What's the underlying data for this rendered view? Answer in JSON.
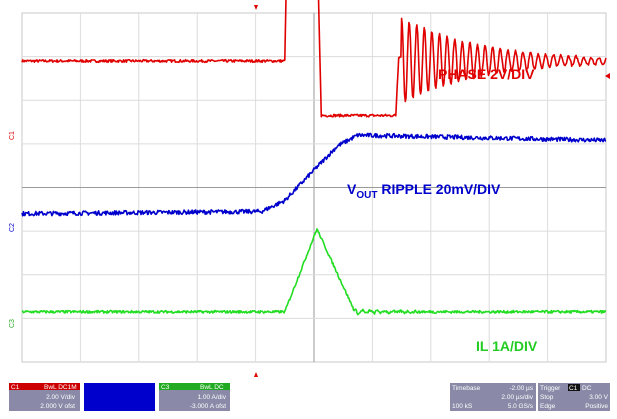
{
  "chart_data": {
    "type": "line",
    "x": {
      "unit": "µs",
      "divisions": 10,
      "per_div": 2.0,
      "range": [
        -10,
        10
      ]
    },
    "y": {
      "divisions": 8
    },
    "series": [
      {
        "id": "C1",
        "name": "PHASE 2V/DIV",
        "color": "#e00000",
        "points": [
          [
            -10,
            2.9
          ],
          [
            -1.0,
            2.9
          ],
          [
            -0.95,
            4.65
          ],
          [
            -0.4,
            4.55
          ],
          [
            0.15,
            4.45
          ],
          [
            0.25,
            1.65
          ],
          [
            2.8,
            1.65
          ],
          [
            2.9,
            3.0
          ],
          [
            10,
            2.9
          ]
        ],
        "ring": {
          "start": 3.0,
          "end": 10,
          "amp": 1.0,
          "decay": 0.38,
          "period": 0.26,
          "center": 2.9
        }
      },
      {
        "id": "C2",
        "name": "VOUT RIPPLE 20mV/DIV",
        "label_parts": {
          "v": "V",
          "sub": "OUT",
          "rest": " RIPPLE  20mV/DIV"
        },
        "color": "#0000cc",
        "points": [
          [
            -10,
            -0.6
          ],
          [
            -1.8,
            -0.55
          ],
          [
            -1.0,
            -0.3
          ],
          [
            0,
            0.4
          ],
          [
            0.8,
            0.95
          ],
          [
            1.5,
            1.2
          ],
          [
            10,
            1.08
          ]
        ],
        "noise": 0.05
      },
      {
        "id": "C3",
        "name": "IL  1A/DIV",
        "color": "#22dd22",
        "points": [
          [
            -10,
            -2.85
          ],
          [
            -1.0,
            -2.85
          ],
          [
            0.1,
            -0.95
          ],
          [
            1.4,
            -2.85
          ],
          [
            10,
            -2.85
          ]
        ],
        "ring": {
          "start": 1.4,
          "end": 10,
          "amp": 0.05,
          "decay": 0.7,
          "period": 0.26,
          "center": -2.85
        }
      }
    ]
  },
  "scope_info": {
    "ch1": {
      "tag": "C1",
      "coupling": "BwL DC1M",
      "scale": "2.00 V/div",
      "offset": "2.000 V ofst"
    },
    "ch2": {
      "tag": "C2",
      "coupling": "",
      "scale": "",
      "offset": ""
    },
    "ch3": {
      "tag": "C3",
      "coupling": "BwL DC",
      "scale": "1.00 A/div",
      "offset": "-3.000 A ofst"
    },
    "timebase": {
      "label": "Timebase",
      "delay": "-2.00 µs",
      "scale": "2.00 µs/div",
      "samples": "100 kS",
      "rate": "5.0 GS/s"
    },
    "trigger": {
      "label": "Trigger",
      "channel": "C1",
      "coupling": "DC",
      "mode": "Stop",
      "level": "3.00 V",
      "type": "Edge",
      "slope": "Positive"
    }
  }
}
